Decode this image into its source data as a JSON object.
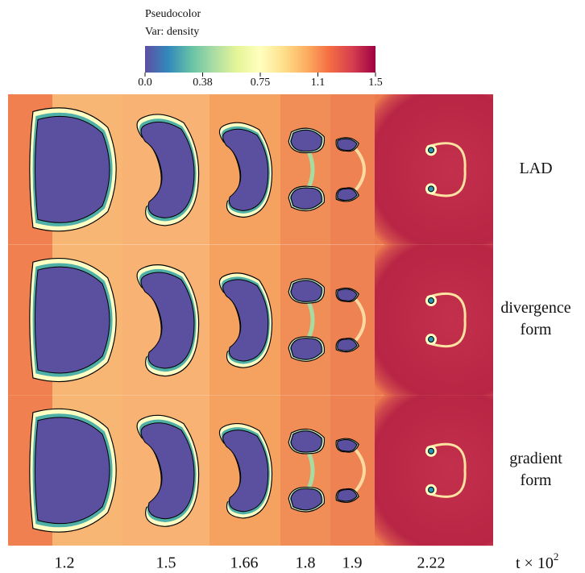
{
  "colorbar": {
    "title": "Pseudocolor",
    "variable": "Var: density",
    "ticks": [
      "0.0",
      "0.38",
      "0.75",
      "1.1",
      "1.5"
    ]
  },
  "rows": [
    [
      "LAD"
    ],
    [
      "divergence",
      "form"
    ],
    [
      "gradient",
      "form"
    ]
  ],
  "columns": [
    "1.2",
    "1.5",
    "1.66",
    "1.8",
    "1.9",
    "2.22"
  ],
  "axis_label": {
    "base": "t × 10",
    "exponent": "2"
  }
}
